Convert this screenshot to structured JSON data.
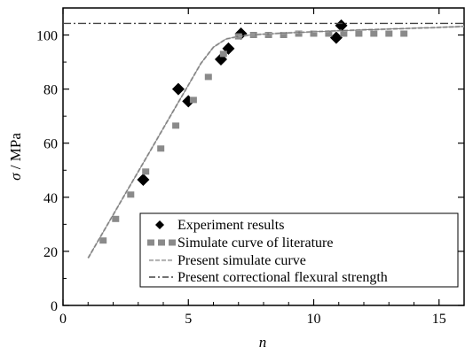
{
  "chart_data": {
    "type": "line",
    "xlabel": "n",
    "ylabel_symbol": "σ",
    "ylabel_unit": " / MPa",
    "xlim": [
      0,
      16
    ],
    "ylim": [
      0,
      110
    ],
    "xticks": [
      0,
      5,
      10,
      15
    ],
    "yticks": [
      0,
      20,
      40,
      60,
      80,
      100
    ],
    "grid": false,
    "legend_position": "bottom-right",
    "series": [
      {
        "name": "Experiment results",
        "kind": "scatter",
        "marker": "diamond",
        "color": "#000000",
        "x": [
          3.2,
          4.6,
          5.0,
          6.3,
          6.6,
          7.1,
          10.9,
          11.1
        ],
        "y": [
          46.5,
          80,
          75.5,
          91,
          95,
          100.5,
          99,
          103.5
        ]
      },
      {
        "name": "Simulate curve of literature",
        "kind": "square-dash",
        "color": "#8a8a8a",
        "x": [
          1.6,
          2.1,
          2.7,
          3.3,
          3.9,
          4.5,
          5.2,
          5.8,
          6.4,
          7.0,
          7.6,
          8.2,
          8.8,
          9.4,
          10.0,
          10.6,
          11.2,
          11.8,
          12.4,
          13.0,
          13.6
        ],
        "y": [
          24,
          32,
          41,
          49.5,
          58,
          66.5,
          76,
          84.5,
          93,
          99.5,
          100,
          100,
          100,
          100.5,
          100.5,
          100.5,
          100.5,
          100.5,
          100.5,
          100.5,
          100.5
        ]
      },
      {
        "name": "Present simulate curve",
        "kind": "dashed",
        "color": "#b5b5b5",
        "x": [
          1.0,
          1.5,
          2.0,
          2.5,
          3.0,
          3.5,
          4.0,
          4.5,
          5.0,
          5.5,
          6.0,
          6.5,
          7.0,
          7.5,
          8.0,
          9.0,
          10.0,
          11.0,
          12.0,
          13.0,
          14.0,
          15.0,
          16.0
        ],
        "y": [
          17.5,
          25.5,
          33.5,
          41.5,
          49.5,
          57.5,
          65.5,
          73.5,
          81.5,
          89.5,
          95.5,
          98.5,
          99.5,
          100,
          100.3,
          100.8,
          101.2,
          101.6,
          101.9,
          102.2,
          102.5,
          102.8,
          103.2
        ]
      },
      {
        "name": "Present correctional flexural strength",
        "kind": "dash-dot",
        "color": "#444444",
        "x": [
          0,
          16
        ],
        "y": [
          104.3,
          104.3
        ]
      }
    ]
  }
}
